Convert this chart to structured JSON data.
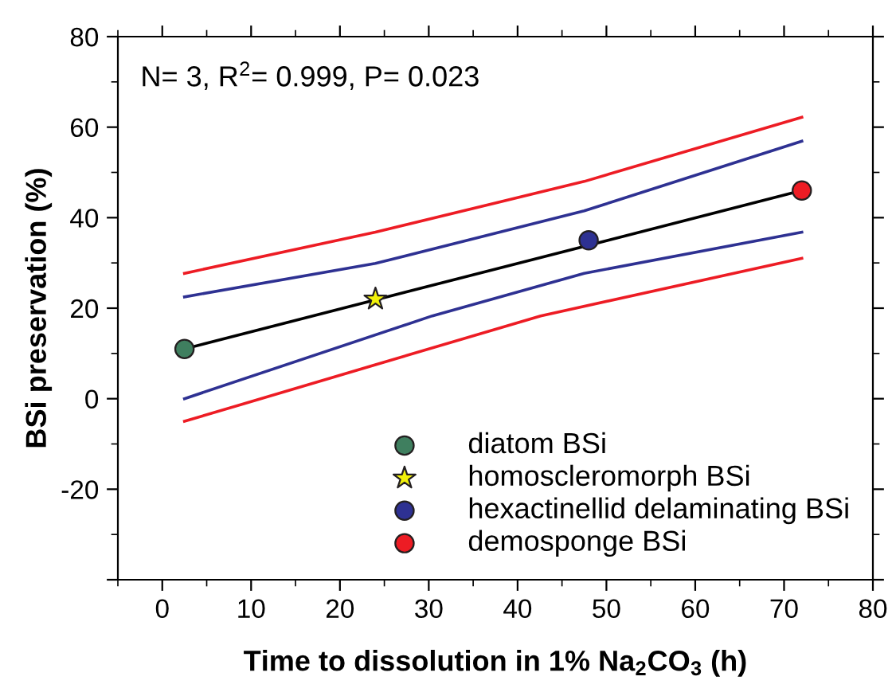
{
  "chart_data": {
    "type": "line",
    "xlabel": "Time to dissolution in 1% Na$_{2}$CO$_{3}$ (h)",
    "ylabel": "BSi preservation (%)",
    "annotations": [
      "N= 3, R$^{2}$= 0.999, P= 0.023"
    ],
    "xlim": [
      -5,
      80
    ],
    "xticks": [
      0,
      10,
      20,
      30,
      40,
      50,
      60,
      70,
      80
    ],
    "ylim": [
      -40,
      80
    ],
    "yticks": [
      {
        "value": -40,
        "label": null
      },
      -20,
      0,
      20,
      40,
      60,
      80
    ],
    "grid": false,
    "legend": "bottom right",
    "series": [
      {
        "color": "#000000",
        "marker": "none",
        "x": [
          2.5,
          72
        ],
        "values": [
          11,
          46
        ]
      },
      {
        "color": "#ed1c24",
        "marker": "none",
        "x": [
          2.5,
          24,
          47.5,
          72
        ],
        "values": [
          27.7,
          36.8,
          48,
          62.2
        ]
      },
      {
        "color": "#2e3192",
        "marker": "none",
        "x": [
          2.5,
          24,
          47.5,
          72
        ],
        "values": [
          22.5,
          29.9,
          41.5,
          56.9
        ]
      },
      {
        "color": "#2e3192",
        "marker": "none",
        "x": [
          2.5,
          30.4,
          47.5,
          72
        ],
        "values": [
          0,
          18.3,
          27.7,
          36.8
        ]
      },
      {
        "color": "#ed1c24",
        "marker": "none",
        "x": [
          2.5,
          24,
          42.6,
          72
        ],
        "values": [
          -5,
          7.5,
          18.3,
          31
        ]
      },
      {
        "type": "scatter",
        "name": "diatom BSi",
        "color": "#3f7f5f",
        "marker": "circle",
        "x": [
          2.5
        ],
        "values": [
          11
        ]
      },
      {
        "type": "scatter",
        "name": "homoscleromorph BSi",
        "color": "#f2f20a",
        "marker": "star",
        "x": [
          24
        ],
        "values": [
          22
        ]
      },
      {
        "type": "scatter",
        "name": "hexactinellid delaminating BSi",
        "color": "#2e3192",
        "marker": "circle",
        "x": [
          48
        ],
        "values": [
          35
        ]
      },
      {
        "type": "scatter",
        "name": "demosponge BSi",
        "color": "#ed1c24",
        "marker": "circle",
        "x": [
          72
        ],
        "values": [
          46
        ]
      }
    ]
  }
}
